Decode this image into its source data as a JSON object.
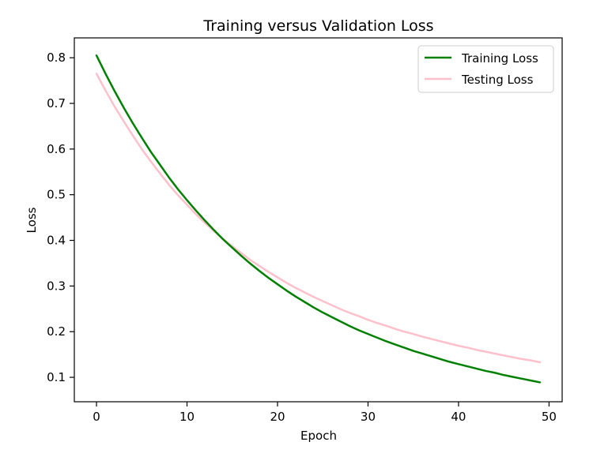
{
  "chart_data": {
    "type": "line",
    "title": "Training versus Validation Loss",
    "xlabel": "Epoch",
    "ylabel": "Loss",
    "xlim": [
      -2.45,
      51.45
    ],
    "ylim": [
      0.0465,
      0.8435
    ],
    "xticks": [
      0,
      10,
      20,
      30,
      40,
      50
    ],
    "yticks": [
      0.1,
      0.2,
      0.3,
      0.4,
      0.5,
      0.6,
      0.7,
      0.8
    ],
    "grid": false,
    "legend_position": "upper right",
    "series": [
      {
        "name": "Training Loss",
        "color": "#008000",
        "x": [
          0,
          1,
          2,
          3,
          4,
          5,
          6,
          7,
          8,
          9,
          10,
          11,
          12,
          13,
          14,
          15,
          16,
          17,
          18,
          19,
          20,
          21,
          22,
          23,
          24,
          25,
          26,
          27,
          28,
          29,
          30,
          31,
          32,
          33,
          34,
          35,
          36,
          37,
          38,
          39,
          40,
          41,
          42,
          43,
          44,
          45,
          46,
          47,
          48,
          49
        ],
        "values": [
          0.805,
          0.765,
          0.727,
          0.691,
          0.657,
          0.625,
          0.594,
          0.566,
          0.538,
          0.512,
          0.488,
          0.465,
          0.443,
          0.422,
          0.402,
          0.384,
          0.366,
          0.349,
          0.333,
          0.318,
          0.304,
          0.29,
          0.277,
          0.265,
          0.253,
          0.242,
          0.232,
          0.222,
          0.212,
          0.203,
          0.195,
          0.187,
          0.179,
          0.172,
          0.165,
          0.158,
          0.152,
          0.146,
          0.14,
          0.134,
          0.129,
          0.124,
          0.119,
          0.114,
          0.11,
          0.105,
          0.101,
          0.097,
          0.093,
          0.089
        ]
      },
      {
        "name": "Testing Loss",
        "color": "#FFC0CB",
        "x": [
          0,
          1,
          2,
          3,
          4,
          5,
          6,
          7,
          8,
          9,
          10,
          11,
          12,
          13,
          14,
          15,
          16,
          17,
          18,
          19,
          20,
          21,
          22,
          23,
          24,
          25,
          26,
          27,
          28,
          29,
          30,
          31,
          32,
          33,
          34,
          35,
          36,
          37,
          38,
          39,
          40,
          41,
          42,
          43,
          44,
          45,
          46,
          47,
          48,
          49
        ],
        "values": [
          0.765,
          0.728,
          0.693,
          0.661,
          0.63,
          0.6,
          0.573,
          0.547,
          0.522,
          0.499,
          0.478,
          0.457,
          0.438,
          0.42,
          0.403,
          0.387,
          0.372,
          0.357,
          0.344,
          0.331,
          0.319,
          0.307,
          0.296,
          0.286,
          0.276,
          0.267,
          0.258,
          0.249,
          0.241,
          0.234,
          0.226,
          0.219,
          0.213,
          0.206,
          0.2,
          0.195,
          0.189,
          0.184,
          0.179,
          0.174,
          0.169,
          0.165,
          0.16,
          0.156,
          0.152,
          0.148,
          0.144,
          0.14,
          0.137,
          0.133
        ]
      }
    ]
  }
}
